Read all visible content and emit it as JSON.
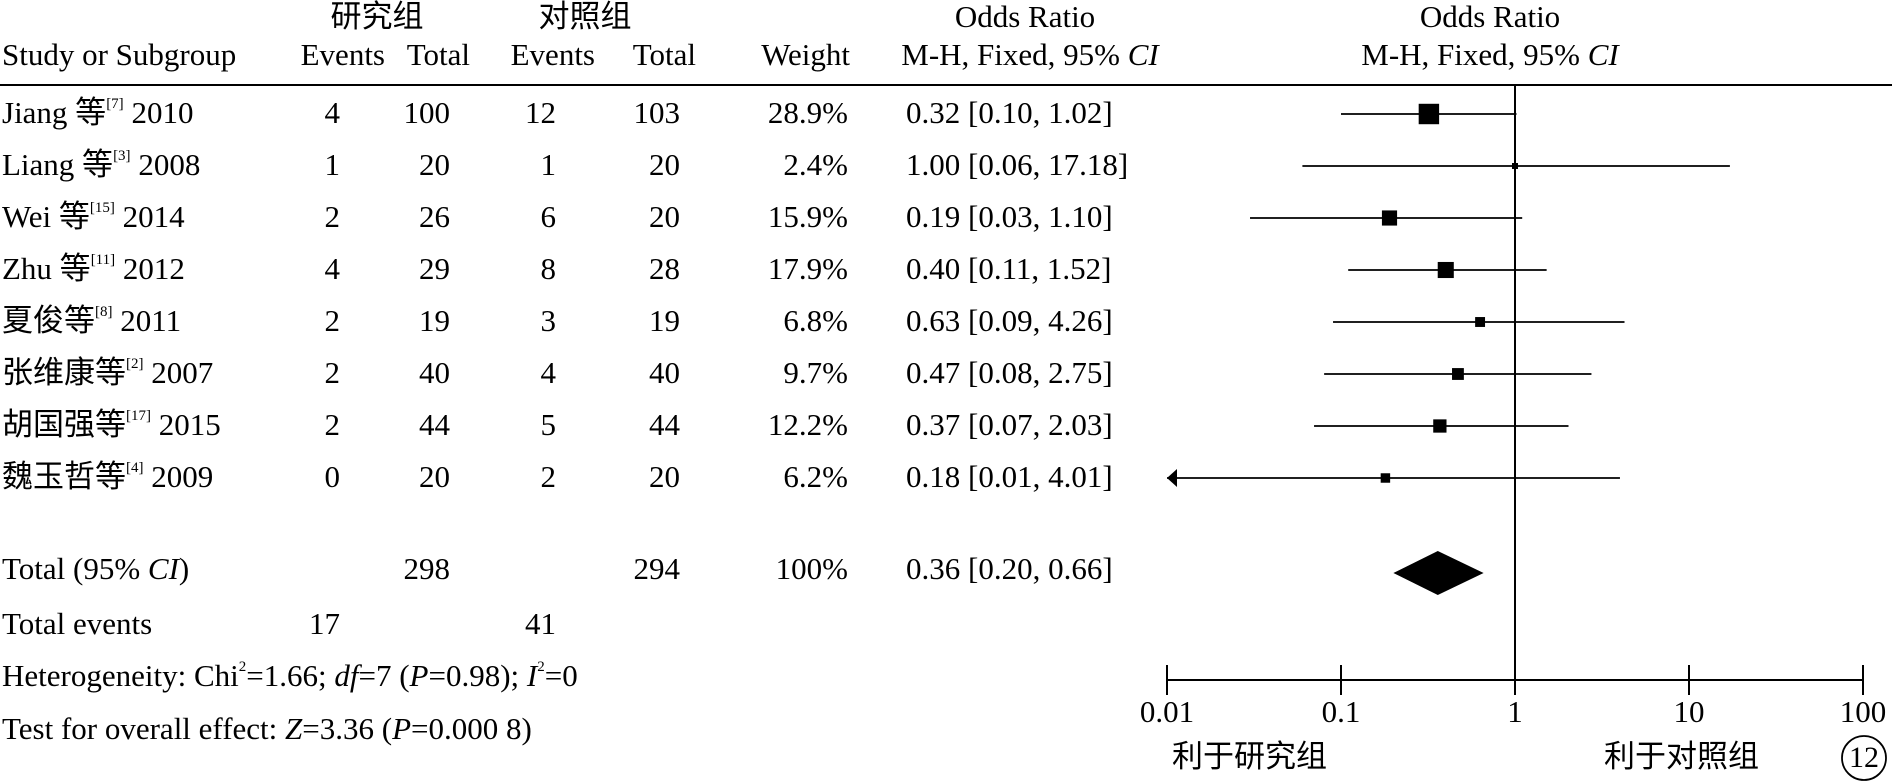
{
  "header": {
    "group1_label": "研究组",
    "group2_label": "对照组",
    "col_study": "Study or Subgroup",
    "col_events": "Events",
    "col_total": "Total",
    "col_weight": "Weight",
    "col_or_title": "Odds Ratio",
    "col_or_method": "M-H, Fixed, 95% ",
    "col_or_ci": "CI",
    "plot_title": "Odds Ratio",
    "plot_method": "M-H, Fixed, 95% ",
    "plot_ci": "CI"
  },
  "studies": [
    {
      "name": "Jiang 等",
      "ref": "[7]",
      "year": "2010",
      "e1": "4",
      "n1": "100",
      "e2": "12",
      "n2": "103",
      "weight": "28.9%",
      "or_text": "0.32 [0.10, 1.02]",
      "or": 0.32,
      "lo": 0.1,
      "hi": 1.02
    },
    {
      "name": "Liang 等",
      "ref": "[3]",
      "year": "2008",
      "e1": "1",
      "n1": "20",
      "e2": "1",
      "n2": "20",
      "weight": "2.4%",
      "or_text": "1.00 [0.06, 17.18]",
      "or": 1.0,
      "lo": 0.06,
      "hi": 17.18
    },
    {
      "name": "Wei 等",
      "ref": "[15]",
      "year": "2014",
      "e1": "2",
      "n1": "26",
      "e2": "6",
      "n2": "20",
      "weight": "15.9%",
      "or_text": "0.19 [0.03, 1.10]",
      "or": 0.19,
      "lo": 0.03,
      "hi": 1.1
    },
    {
      "name": "Zhu 等",
      "ref": "[11]",
      "year": "2012",
      "e1": "4",
      "n1": "29",
      "e2": "8",
      "n2": "28",
      "weight": "17.9%",
      "or_text": "0.40 [0.11, 1.52]",
      "or": 0.4,
      "lo": 0.11,
      "hi": 1.52
    },
    {
      "name": "夏俊等",
      "ref": "[8]",
      "year": "2011",
      "e1": "2",
      "n1": "19",
      "e2": "3",
      "n2": "19",
      "weight": "6.8%",
      "or_text": "0.63 [0.09, 4.26]",
      "or": 0.63,
      "lo": 0.09,
      "hi": 4.26
    },
    {
      "name": "张维康等",
      "ref": "[2]",
      "year": "2007",
      "e1": "2",
      "n1": "40",
      "e2": "4",
      "n2": "40",
      "weight": "9.7%",
      "or_text": "0.47 [0.08, 2.75]",
      "or": 0.47,
      "lo": 0.08,
      "hi": 2.75
    },
    {
      "name": "胡国强等",
      "ref": "[17]",
      "year": "2015",
      "e1": "2",
      "n1": "44",
      "e2": "5",
      "n2": "44",
      "weight": "12.2%",
      "or_text": "0.37 [0.07, 2.03]",
      "or": 0.37,
      "lo": 0.07,
      "hi": 2.03
    },
    {
      "name": "魏玉哲等",
      "ref": "[4]",
      "year": "2009",
      "e1": "0",
      "n1": "20",
      "e2": "2",
      "n2": "20",
      "weight": "6.2%",
      "or_text": "0.18 [0.01, 4.01]",
      "or": 0.18,
      "lo": 0.01,
      "hi": 4.01
    }
  ],
  "total": {
    "label_prefix": "Total (95% ",
    "label_ci": "CI",
    "label_suffix": ")",
    "n1": "298",
    "n2": "294",
    "weight": "100%",
    "or_text": "0.36 [0.20, 0.66]",
    "or": 0.36,
    "lo": 0.2,
    "hi": 0.66
  },
  "total_events": {
    "label": "Total events",
    "e1": "17",
    "e2": "41"
  },
  "heterogeneity": {
    "prefix": "Heterogeneity: Chi",
    "sup": "2",
    "mid1": "=1.66; ",
    "df_label": "df",
    "mid2": "=7 (",
    "p_label": "P",
    "mid3": "=0.98); ",
    "i_label": "I",
    "i_sup": "2",
    "end": "=0"
  },
  "overall": {
    "prefix": "Test for overall effect: ",
    "z_label": "Z",
    "mid": "=3.36 (",
    "p_label": "P",
    "end": "=0.000 8)"
  },
  "chart_data": {
    "type": "scatter",
    "subtype": "forest-plot",
    "title": "Odds Ratio",
    "subtitle": "M-H, Fixed, 95% CI",
    "xscale": "log",
    "xlim": [
      0.01,
      100
    ],
    "xticks": [
      0.01,
      0.1,
      1,
      10,
      100
    ],
    "xtick_labels": [
      "0.01",
      "0.1",
      "1",
      "10",
      "100"
    ],
    "reference_line": 1,
    "left_label": "利于研究组",
    "right_label": "利于对照组",
    "series": [
      {
        "name": "",
        "points": [
          {
            "study": "Jiang 等 2010",
            "or": 0.32,
            "lo": 0.1,
            "hi": 1.02,
            "weight": 28.9
          },
          {
            "study": "Liang 等 2008",
            "or": 1.0,
            "lo": 0.06,
            "hi": 17.18,
            "weight": 2.4
          },
          {
            "study": "Wei 等 2014",
            "or": 0.19,
            "lo": 0.03,
            "hi": 1.1,
            "weight": 15.9
          },
          {
            "study": "Zhu 等 2012",
            "or": 0.4,
            "lo": 0.11,
            "hi": 1.52,
            "weight": 17.9
          },
          {
            "study": "夏俊等 2011",
            "or": 0.63,
            "lo": 0.09,
            "hi": 4.26,
            "weight": 6.8
          },
          {
            "study": "张维康等 2007",
            "or": 0.47,
            "lo": 0.08,
            "hi": 2.75,
            "weight": 9.7
          },
          {
            "study": "胡国强等 2015",
            "or": 0.37,
            "lo": 0.07,
            "hi": 2.03,
            "weight": 12.2
          },
          {
            "study": "魏玉哲等 2009",
            "or": 0.18,
            "lo": 0.01,
            "hi": 4.01,
            "weight": 6.2
          }
        ]
      }
    ],
    "summary": {
      "or": 0.36,
      "lo": 0.2,
      "hi": 0.66
    }
  },
  "badge": "12"
}
